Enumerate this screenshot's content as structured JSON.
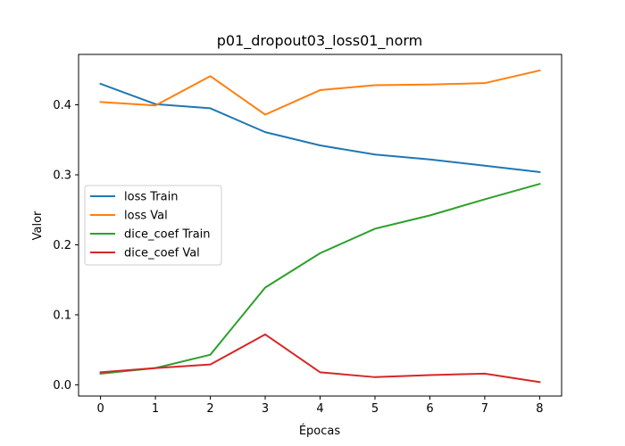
{
  "chart_data": {
    "type": "line",
    "title": "p01_dropout03_loss01_norm",
    "xlabel": "Épocas",
    "ylabel": "Valor",
    "x": [
      0,
      1,
      2,
      3,
      4,
      5,
      6,
      7,
      8
    ],
    "xlim": [
      -0.4,
      8.4
    ],
    "ylim": [
      -0.016,
      0.472
    ],
    "xticks": [
      0,
      1,
      2,
      3,
      4,
      5,
      6,
      7,
      8
    ],
    "yticks": [
      0.0,
      0.1,
      0.2,
      0.3,
      0.4
    ],
    "ytick_labels": [
      "0.0",
      "0.1",
      "0.2",
      "0.3",
      "0.4"
    ],
    "grid": false,
    "legend_position": "center-left",
    "series": [
      {
        "name": "loss Train",
        "color": "#1f77b4",
        "values": [
          0.43,
          0.401,
          0.395,
          0.361,
          0.342,
          0.329,
          0.322,
          0.313,
          0.304
        ]
      },
      {
        "name": "loss Val",
        "color": "#ff7f0e",
        "values": [
          0.404,
          0.399,
          0.441,
          0.386,
          0.421,
          0.428,
          0.429,
          0.431,
          0.449
        ]
      },
      {
        "name": "dice_coef Train",
        "color": "#2ca02c",
        "values": [
          0.016,
          0.024,
          0.043,
          0.139,
          0.188,
          0.223,
          0.242,
          0.265,
          0.287
        ]
      },
      {
        "name": "dice_coef Val",
        "color": "#d62728",
        "values": [
          0.018,
          0.024,
          0.029,
          0.072,
          0.018,
          0.011,
          0.014,
          0.016,
          0.004
        ]
      }
    ]
  }
}
